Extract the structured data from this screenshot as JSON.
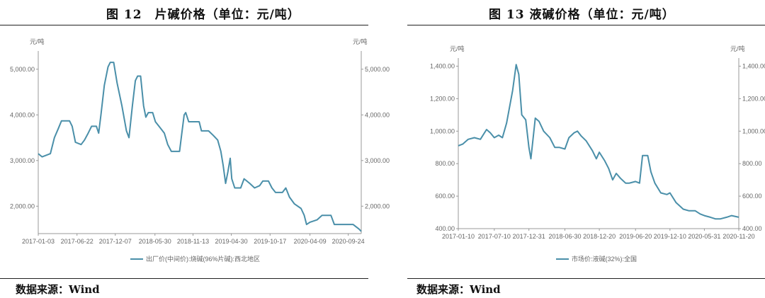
{
  "figures": [
    {
      "title": "图 12　片碱价格（单位：元/吨）",
      "source": "数据来源：Wind"
    },
    {
      "title": "图 13  液碱价格（单位：元/吨）",
      "source": "数据来源：Wind"
    }
  ],
  "colors": {
    "line": "#4A8FA9",
    "axis": "#999999",
    "tick_text": "#666666",
    "grid": "#e4e4e4"
  },
  "chart_data": [
    {
      "type": "line",
      "unit_left": "元/吨",
      "unit_right": "元/吨",
      "ylim": [
        1400,
        5400
      ],
      "yticks": [
        2000,
        3000,
        4000,
        5000
      ],
      "ytick_labels": [
        "2,000.00",
        "3,000.00",
        "4,000.00",
        "5,000.00"
      ],
      "xlim": [
        "2017-01-03",
        "2020-11-20"
      ],
      "xticks": [
        "2017-01-03",
        "2017-06-22",
        "2017-12-07",
        "2018-05-30",
        "2018-11-13",
        "2019-04-30",
        "2019-10-17",
        "2020-04-09",
        "2020-09-24"
      ],
      "grid": false,
      "legend_position": "bottom",
      "series": [
        {
          "name": "出厂价(中间价):烧碱(96%片碱):西北地区",
          "points": [
            [
              "2017-01-03",
              3150
            ],
            [
              "2017-01-20",
              3080
            ],
            [
              "2017-02-25",
              3150
            ],
            [
              "2017-03-15",
              3500
            ],
            [
              "2017-04-01",
              3700
            ],
            [
              "2017-04-15",
              3870
            ],
            [
              "2017-05-20",
              3870
            ],
            [
              "2017-06-01",
              3750
            ],
            [
              "2017-06-15",
              3400
            ],
            [
              "2017-07-10",
              3350
            ],
            [
              "2017-07-25",
              3450
            ],
            [
              "2017-08-10",
              3600
            ],
            [
              "2017-08-25",
              3750
            ],
            [
              "2017-09-15",
              3750
            ],
            [
              "2017-09-25",
              3600
            ],
            [
              "2017-10-05",
              4000
            ],
            [
              "2017-10-20",
              4650
            ],
            [
              "2017-11-05",
              5050
            ],
            [
              "2017-11-15",
              5150
            ],
            [
              "2017-11-30",
              5150
            ],
            [
              "2017-12-15",
              4700
            ],
            [
              "2018-01-05",
              4200
            ],
            [
              "2018-01-25",
              3650
            ],
            [
              "2018-02-05",
              3500
            ],
            [
              "2018-02-20",
              4200
            ],
            [
              "2018-03-05",
              4750
            ],
            [
              "2018-03-15",
              4850
            ],
            [
              "2018-03-28",
              4850
            ],
            [
              "2018-04-10",
              4200
            ],
            [
              "2018-04-20",
              3950
            ],
            [
              "2018-05-01",
              4050
            ],
            [
              "2018-05-20",
              4050
            ],
            [
              "2018-06-01",
              3850
            ],
            [
              "2018-06-25",
              3700
            ],
            [
              "2018-07-10",
              3600
            ],
            [
              "2018-07-25",
              3350
            ],
            [
              "2018-08-10",
              3200
            ],
            [
              "2018-08-25",
              3200
            ],
            [
              "2018-09-15",
              3200
            ],
            [
              "2018-09-25",
              3600
            ],
            [
              "2018-10-05",
              4000
            ],
            [
              "2018-10-12",
              4050
            ],
            [
              "2018-10-25",
              3850
            ],
            [
              "2018-11-15",
              3850
            ],
            [
              "2018-12-10",
              3850
            ],
            [
              "2018-12-20",
              3650
            ],
            [
              "2019-01-20",
              3650
            ],
            [
              "2019-02-10",
              3550
            ],
            [
              "2019-03-01",
              3450
            ],
            [
              "2019-03-15",
              3200
            ],
            [
              "2019-03-25",
              2900
            ],
            [
              "2019-04-05",
              2500
            ],
            [
              "2019-04-15",
              2750
            ],
            [
              "2019-04-25",
              3050
            ],
            [
              "2019-05-02",
              2600
            ],
            [
              "2019-05-15",
              2400
            ],
            [
              "2019-06-10",
              2400
            ],
            [
              "2019-06-25",
              2600
            ],
            [
              "2019-07-20",
              2500
            ],
            [
              "2019-08-10",
              2400
            ],
            [
              "2019-09-01",
              2450
            ],
            [
              "2019-09-15",
              2550
            ],
            [
              "2019-10-10",
              2550
            ],
            [
              "2019-10-25",
              2400
            ],
            [
              "2019-11-10",
              2300
            ],
            [
              "2019-12-10",
              2300
            ],
            [
              "2019-12-25",
              2400
            ],
            [
              "2020-01-10",
              2200
            ],
            [
              "2020-02-01",
              2050
            ],
            [
              "2020-03-01",
              1950
            ],
            [
              "2020-03-15",
              1800
            ],
            [
              "2020-03-25",
              1600
            ],
            [
              "2020-04-09",
              1650
            ],
            [
              "2020-05-10",
              1700
            ],
            [
              "2020-06-01",
              1800
            ],
            [
              "2020-07-10",
              1800
            ],
            [
              "2020-07-25",
              1600
            ],
            [
              "2020-10-15",
              1600
            ],
            [
              "2020-11-10",
              1500
            ],
            [
              "2020-11-20",
              1450
            ]
          ]
        }
      ]
    },
    {
      "type": "line",
      "unit_left": "元/吨",
      "unit_right": "元/吨",
      "ylim": [
        400,
        1450
      ],
      "yticks": [
        400,
        600,
        800,
        1000,
        1200,
        1400
      ],
      "ytick_labels": [
        "400.00",
        "600.00",
        "800.00",
        "1,000.00",
        "1,200.00",
        "1,400.00"
      ],
      "xlim": [
        "2017-01-10",
        "2020-11-20"
      ],
      "xticks": [
        "2017-01-10",
        "2017-07-10",
        "2017-12-31",
        "2018-06-30",
        "2018-12-20",
        "2019-06-20",
        "2019-12-10",
        "2020-05-31",
        "2020-11-20"
      ],
      "grid": false,
      "legend_position": "bottom",
      "series": [
        {
          "name": "市场价:液碱(32%):全国",
          "points": [
            [
              "2017-01-10",
              910
            ],
            [
              "2017-02-01",
              920
            ],
            [
              "2017-03-01",
              950
            ],
            [
              "2017-04-01",
              960
            ],
            [
              "2017-05-01",
              950
            ],
            [
              "2017-06-01",
              1010
            ],
            [
              "2017-06-20",
              990
            ],
            [
              "2017-07-10",
              960
            ],
            [
              "2017-08-01",
              975
            ],
            [
              "2017-08-20",
              960
            ],
            [
              "2017-09-10",
              1050
            ],
            [
              "2017-10-10",
              1250
            ],
            [
              "2017-10-28",
              1410
            ],
            [
              "2017-11-10",
              1350
            ],
            [
              "2017-11-25",
              1100
            ],
            [
              "2017-12-15",
              1070
            ],
            [
              "2017-12-31",
              900
            ],
            [
              "2018-01-10",
              830
            ],
            [
              "2018-02-01",
              1080
            ],
            [
              "2018-02-20",
              1060
            ],
            [
              "2018-03-15",
              1000
            ],
            [
              "2018-04-15",
              960
            ],
            [
              "2018-05-10",
              900
            ],
            [
              "2018-06-01",
              900
            ],
            [
              "2018-06-30",
              890
            ],
            [
              "2018-07-20",
              960
            ],
            [
              "2018-08-15",
              990
            ],
            [
              "2018-09-01",
              1000
            ],
            [
              "2018-09-20",
              970
            ],
            [
              "2018-10-15",
              940
            ],
            [
              "2018-11-15",
              880
            ],
            [
              "2018-12-05",
              830
            ],
            [
              "2018-12-20",
              870
            ],
            [
              "2019-01-15",
              820
            ],
            [
              "2019-02-05",
              770
            ],
            [
              "2019-02-25",
              700
            ],
            [
              "2019-03-15",
              740
            ],
            [
              "2019-04-05",
              710
            ],
            [
              "2019-05-01",
              680
            ],
            [
              "2019-05-20",
              680
            ],
            [
              "2019-06-20",
              690
            ],
            [
              "2019-07-10",
              680
            ],
            [
              "2019-07-25",
              850
            ],
            [
              "2019-08-20",
              850
            ],
            [
              "2019-09-05",
              750
            ],
            [
              "2019-09-25",
              680
            ],
            [
              "2019-10-25",
              620
            ],
            [
              "2019-11-25",
              610
            ],
            [
              "2019-12-10",
              620
            ],
            [
              "2020-01-10",
              560
            ],
            [
              "2020-02-15",
              520
            ],
            [
              "2020-03-15",
              510
            ],
            [
              "2020-04-15",
              510
            ],
            [
              "2020-05-10",
              490
            ],
            [
              "2020-05-31",
              480
            ],
            [
              "2020-06-30",
              470
            ],
            [
              "2020-07-25",
              460
            ],
            [
              "2020-08-20",
              460
            ],
            [
              "2020-09-20",
              470
            ],
            [
              "2020-10-15",
              480
            ],
            [
              "2020-11-20",
              470
            ]
          ]
        }
      ]
    }
  ]
}
